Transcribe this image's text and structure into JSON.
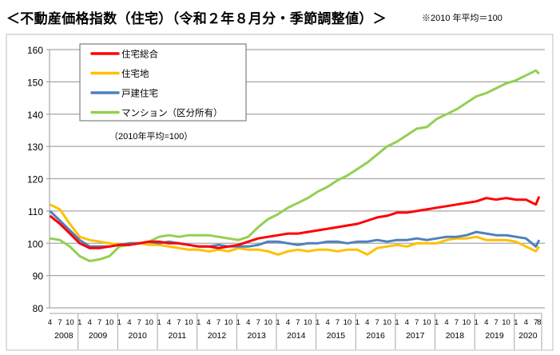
{
  "title": "＜不動産価格指数（住宅）（令和２年８月分・季節調整値）＞",
  "note": "※2010 年平均＝100",
  "chart_data": {
    "type": "line",
    "title": "＜不動産価格指数（住宅）（令和２年８月分・季節調整値）＞",
    "annotation": "（2010年平均=100）",
    "ylim": [
      80,
      160
    ],
    "y_ticks": [
      "80",
      "90",
      "100",
      "110",
      "120",
      "130",
      "140",
      "150",
      "160"
    ],
    "grid": "horizontal",
    "legend_position": "top-left",
    "years": [
      "2008",
      "2009",
      "2010",
      "2011",
      "2012",
      "2013",
      "2014",
      "2015",
      "2016",
      "2017",
      "2018",
      "2019",
      "2020"
    ],
    "first_year_month_ticks": [
      "4",
      "7",
      "10"
    ],
    "month_ticks": [
      "1",
      "4",
      "7",
      "10"
    ],
    "last_year_month_ticks": [
      "1",
      "4",
      "7",
      "8"
    ],
    "x": [
      "2008-04",
      "2008-07",
      "2008-10",
      "2009-01",
      "2009-04",
      "2009-07",
      "2009-10",
      "2010-01",
      "2010-04",
      "2010-07",
      "2010-10",
      "2011-01",
      "2011-04",
      "2011-07",
      "2011-10",
      "2012-01",
      "2012-04",
      "2012-07",
      "2012-10",
      "2013-01",
      "2013-04",
      "2013-07",
      "2013-10",
      "2014-01",
      "2014-04",
      "2014-07",
      "2014-10",
      "2015-01",
      "2015-04",
      "2015-07",
      "2015-10",
      "2016-01",
      "2016-04",
      "2016-07",
      "2016-10",
      "2017-01",
      "2017-04",
      "2017-07",
      "2017-10",
      "2018-01",
      "2018-04",
      "2018-07",
      "2018-10",
      "2019-01",
      "2019-04",
      "2019-07",
      "2019-10",
      "2020-01",
      "2020-04",
      "2020-07",
      "2020-08"
    ],
    "series": [
      {
        "name": "住宅総合",
        "color": "#ff0000",
        "values": [
          108.5,
          106,
          103,
          100,
          98.5,
          98.5,
          99,
          99.5,
          99.5,
          100,
          100.5,
          100.5,
          100,
          100,
          99.5,
          99,
          99,
          98.5,
          99,
          99.5,
          100.5,
          101.5,
          102,
          102.5,
          103,
          103,
          103.5,
          104,
          104.5,
          105,
          105.5,
          106,
          107,
          108,
          108.5,
          109.5,
          109.5,
          110,
          110.5,
          111,
          111.5,
          112,
          112.5,
          113,
          114,
          113.5,
          114,
          113.5,
          113.5,
          112,
          114.5
        ]
      },
      {
        "name": "住宅地",
        "color": "#ffc000",
        "values": [
          112,
          110.5,
          106,
          102,
          101,
          100.5,
          100,
          99.5,
          100,
          100,
          99.5,
          99.5,
          99,
          98.5,
          98,
          98,
          97.5,
          98,
          97.5,
          98.5,
          98,
          98,
          97.5,
          96.5,
          97.5,
          98,
          97.5,
          98,
          98,
          97.5,
          98,
          98,
          96.5,
          98.5,
          99,
          99.5,
          99,
          100,
          100,
          100,
          101,
          101.5,
          101.5,
          102,
          101,
          101,
          101,
          100.5,
          99,
          97.5,
          99
        ]
      },
      {
        "name": "戸建住宅",
        "color": "#4f81bd",
        "values": [
          110,
          107,
          104,
          101,
          99,
          99,
          99,
          99.5,
          100,
          100,
          100.5,
          100,
          100.5,
          100,
          99.5,
          99,
          99,
          99.5,
          99,
          99,
          99,
          99.5,
          100.5,
          100.5,
          100,
          99.5,
          100,
          100,
          100.5,
          100.5,
          100,
          100.5,
          100.5,
          101,
          100.5,
          101,
          101,
          101.5,
          101,
          101.5,
          102,
          102,
          102.5,
          103.5,
          103,
          102.5,
          102.5,
          102,
          101.5,
          99,
          101
        ]
      },
      {
        "name": "マンション（区分所有）",
        "color": "#92d050",
        "values": [
          101.5,
          101,
          99,
          96,
          94.5,
          95,
          96,
          99,
          99.5,
          100,
          100.5,
          102,
          102.5,
          102,
          102.5,
          102.5,
          102.5,
          102,
          101.5,
          101,
          102,
          105,
          107.5,
          109,
          111,
          112.5,
          114,
          116,
          117.5,
          119.5,
          121,
          123,
          125,
          127.5,
          130,
          131.5,
          133.5,
          135.5,
          136,
          138.5,
          140,
          141.5,
          143.5,
          145.5,
          146.5,
          148,
          149.5,
          150.5,
          152,
          153.5,
          152.5
        ]
      }
    ]
  }
}
